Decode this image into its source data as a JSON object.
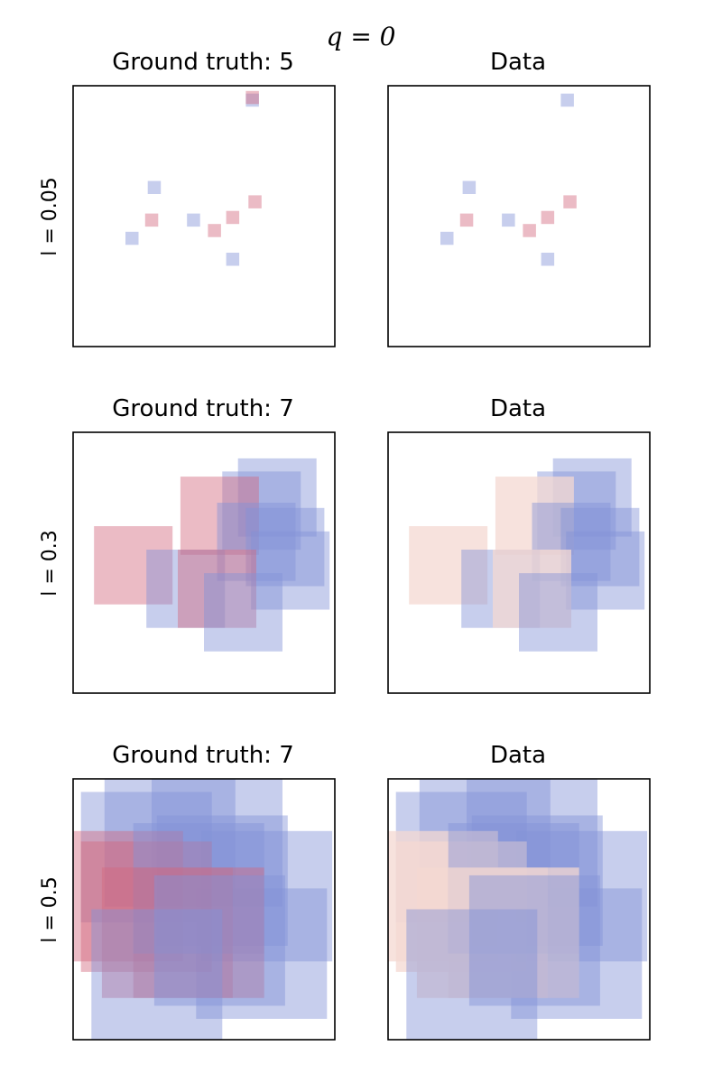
{
  "chart_data": {
    "type": "scatter",
    "suptitle": "q = 0",
    "xlim": [
      0,
      1
    ],
    "ylim": [
      0,
      1
    ],
    "colors": {
      "red": "#d2697e",
      "blue": "#8393d8",
      "blue_strong": "#5a6fd0",
      "light_pale": "#f4d8d2"
    },
    "rows": [
      {
        "row_label": "l = 0.05",
        "size": 0.05,
        "gt_title": "Ground truth: 5",
        "data_title": "Data",
        "squares": [
          {
            "x": 0.685,
            "y": 0.945,
            "gt": "blue",
            "data": "blue"
          },
          {
            "x": 0.685,
            "y": 0.955,
            "gt": "red",
            "data": "none"
          },
          {
            "x": 0.31,
            "y": 0.61,
            "gt": "blue",
            "data": "blue"
          },
          {
            "x": 0.695,
            "y": 0.555,
            "gt": "red",
            "data": "red"
          },
          {
            "x": 0.3,
            "y": 0.485,
            "gt": "red",
            "data": "red"
          },
          {
            "x": 0.46,
            "y": 0.485,
            "gt": "blue",
            "data": "blue"
          },
          {
            "x": 0.61,
            "y": 0.495,
            "gt": "red",
            "data": "red"
          },
          {
            "x": 0.54,
            "y": 0.445,
            "gt": "red",
            "data": "red"
          },
          {
            "x": 0.225,
            "y": 0.415,
            "gt": "blue",
            "data": "blue"
          },
          {
            "x": 0.61,
            "y": 0.335,
            "gt": "blue",
            "data": "blue"
          }
        ]
      },
      {
        "row_label": "l = 0.3",
        "size": 0.3,
        "gt_title": "Ground truth: 7",
        "data_title": "Data",
        "squares": [
          {
            "x": 0.78,
            "y": 0.75,
            "gt": "blue",
            "data": "blue"
          },
          {
            "x": 0.72,
            "y": 0.7,
            "gt": "blue",
            "data": "blue"
          },
          {
            "x": 0.56,
            "y": 0.68,
            "gt": "red",
            "data": "light_pale"
          },
          {
            "x": 0.7,
            "y": 0.58,
            "gt": "blue",
            "data": "blue"
          },
          {
            "x": 0.81,
            "y": 0.56,
            "gt": "blue",
            "data": "blue"
          },
          {
            "x": 0.23,
            "y": 0.49,
            "gt": "red",
            "data": "light_pale"
          },
          {
            "x": 0.83,
            "y": 0.47,
            "gt": "blue",
            "data": "blue"
          },
          {
            "x": 0.43,
            "y": 0.4,
            "gt": "blue",
            "data": "blue"
          },
          {
            "x": 0.55,
            "y": 0.4,
            "gt": "red",
            "data": "light_pale"
          },
          {
            "x": 0.65,
            "y": 0.31,
            "gt": "blue",
            "data": "blue"
          }
        ]
      },
      {
        "row_label": "l = 0.5",
        "size": 0.5,
        "gt_title": "Ground truth: 7",
        "data_title": "Data",
        "squares": [
          {
            "x": 0.55,
            "y": 0.76,
            "gt": "blue",
            "data": "blue"
          },
          {
            "x": 0.57,
            "y": 0.61,
            "gt": "blue",
            "data": "blue"
          },
          {
            "x": 0.74,
            "y": 0.55,
            "gt": "blue",
            "data": "blue"
          },
          {
            "x": 0.28,
            "y": 0.7,
            "gt": "blue",
            "data": "blue"
          },
          {
            "x": 0.37,
            "y": 0.76,
            "gt": "blue",
            "data": "blue"
          },
          {
            "x": 0.72,
            "y": 0.33,
            "gt": "blue",
            "data": "blue"
          },
          {
            "x": 0.17,
            "y": 0.55,
            "gt": "red",
            "data": "light_pale"
          },
          {
            "x": 0.28,
            "y": 0.51,
            "gt": "red",
            "data": "light_pale"
          },
          {
            "x": 0.36,
            "y": 0.41,
            "gt": "red",
            "data": "light_pale"
          },
          {
            "x": 0.48,
            "y": 0.58,
            "gt": "blue",
            "data": "blue"
          },
          {
            "x": 0.48,
            "y": 0.41,
            "gt": "red",
            "data": "light_pale"
          },
          {
            "x": 0.56,
            "y": 0.38,
            "gt": "blue",
            "data": "blue"
          },
          {
            "x": 0.32,
            "y": 0.25,
            "gt": "blue",
            "data": "blue"
          }
        ]
      }
    ]
  }
}
